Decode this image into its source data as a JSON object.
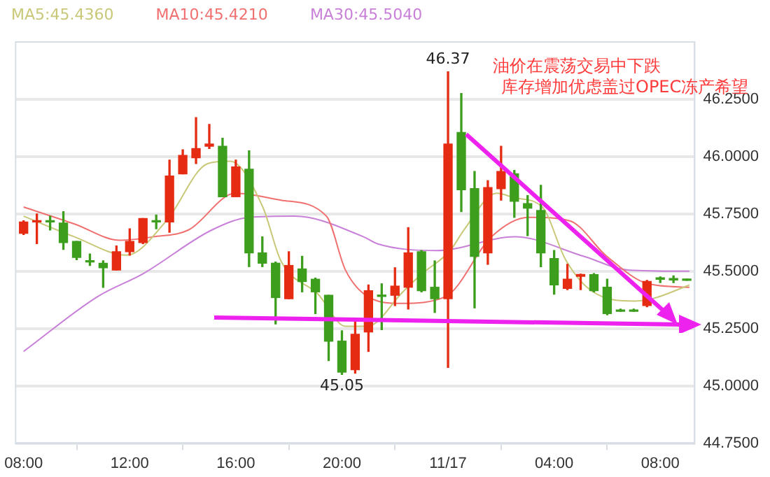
{
  "chart_data": {
    "type": "candlestick",
    "x": [
      "--11-16T08:00",
      "--11-16T08:30",
      "--11-16T09:00",
      "--11-16T09:30",
      "--11-16T10:00",
      "--11-16T10:30",
      "--11-16T11:00",
      "--11-16T11:30",
      "--11-16T12:00",
      "--11-16T12:30",
      "--11-16T13:00",
      "--11-16T13:30",
      "--11-16T14:00",
      "--11-16T14:30",
      "--11-16T15:00",
      "--11-16T15:30",
      "--11-16T16:00",
      "--11-16T16:30",
      "--11-16T17:00",
      "--11-16T17:30",
      "--11-16T18:00",
      "--11-16T18:30",
      "--11-16T19:00",
      "--11-16T19:30",
      "--11-16T20:00",
      "--11-16T20:30",
      "--11-16T21:00",
      "--11-16T21:30",
      "--11-16T22:00",
      "--11-16T22:30",
      "--11-16T23:00",
      "--11-16T23:30",
      "--11-17T00:00",
      "--11-17T00:30",
      "--11-17T01:00",
      "--11-17T01:30",
      "--11-17T02:00",
      "--11-17T02:30",
      "--11-17T03:00",
      "--11-17T03:30",
      "--11-17T04:00",
      "--11-17T04:30",
      "--11-17T05:00",
      "--11-17T05:30",
      "--11-17T06:00",
      "--11-17T06:30",
      "--11-17T07:00",
      "--11-17T07:30",
      "--11-17T08:00",
      "--11-17T08:30",
      "--11-17T09:00"
    ],
    "ohlc": [
      [
        45.665,
        45.72,
        45.66,
        45.715
      ],
      [
        45.715,
        45.75,
        45.62,
        45.72
      ],
      [
        45.72,
        45.74,
        45.68,
        45.715
      ],
      [
        45.71,
        45.76,
        45.595,
        45.625
      ],
      [
        45.63,
        45.63,
        45.55,
        45.56
      ],
      [
        45.545,
        45.575,
        45.525,
        45.54
      ],
      [
        45.535,
        45.545,
        45.43,
        45.515
      ],
      [
        45.505,
        45.61,
        45.505,
        45.585
      ],
      [
        45.585,
        45.685,
        45.57,
        45.63
      ],
      [
        45.625,
        45.73,
        45.62,
        45.73
      ],
      [
        45.72,
        45.745,
        45.685,
        45.715
      ],
      [
        45.715,
        45.985,
        45.67,
        45.915
      ],
      [
        45.925,
        46.03,
        45.925,
        46.005
      ],
      [
        45.995,
        46.17,
        45.97,
        46.035
      ],
      [
        46.045,
        46.14,
        46.035,
        46.055
      ],
      [
        46.045,
        46.08,
        45.825,
        45.825
      ],
      [
        45.825,
        45.985,
        45.825,
        45.955
      ],
      [
        45.945,
        46.025,
        45.52,
        45.58
      ],
      [
        45.58,
        45.65,
        45.52,
        45.535
      ],
      [
        45.535,
        45.54,
        45.27,
        45.385
      ],
      [
        45.38,
        45.585,
        45.38,
        45.525
      ],
      [
        45.51,
        45.565,
        45.41,
        45.455
      ],
      [
        45.465,
        45.47,
        45.315,
        45.41
      ],
      [
        45.395,
        45.395,
        45.11,
        45.195
      ],
      [
        45.195,
        45.24,
        45.05,
        45.06
      ],
      [
        45.07,
        45.28,
        45.055,
        45.225
      ],
      [
        45.235,
        45.44,
        45.15,
        45.415
      ],
      [
        45.395,
        45.445,
        45.245,
        45.39
      ],
      [
        45.395,
        45.515,
        45.35,
        45.435
      ],
      [
        45.43,
        45.69,
        45.335,
        45.58
      ],
      [
        45.585,
        45.59,
        45.41,
        45.415
      ],
      [
        45.43,
        45.545,
        45.32,
        45.38
      ],
      [
        45.38,
        46.37,
        45.08,
        46.055
      ],
      [
        46.105,
        46.275,
        45.76,
        45.855
      ],
      [
        45.86,
        45.935,
        45.34,
        45.565
      ],
      [
        45.58,
        45.895,
        45.53,
        45.865
      ],
      [
        45.86,
        46.045,
        45.81,
        45.935
      ],
      [
        45.925,
        45.94,
        45.735,
        45.805
      ],
      [
        45.795,
        45.83,
        45.655,
        45.775
      ],
      [
        45.765,
        45.875,
        45.52,
        45.58
      ],
      [
        45.555,
        45.59,
        45.4,
        45.44
      ],
      [
        45.425,
        45.53,
        45.42,
        45.465
      ],
      [
        45.478,
        45.487,
        45.42,
        45.486
      ],
      [
        45.485,
        45.49,
        45.41,
        45.415
      ],
      [
        45.43,
        45.465,
        45.31,
        45.315
      ],
      [
        45.33,
        45.335,
        45.325,
        45.325
      ],
      [
        45.33,
        45.335,
        45.325,
        45.325
      ],
      [
        45.35,
        45.46,
        45.345,
        45.455
      ],
      [
        45.468,
        45.475,
        45.45,
        45.465
      ],
      [
        45.467,
        45.48,
        45.45,
        45.462
      ],
      [
        45.462,
        45.462,
        45.46,
        45.46
      ]
    ],
    "colors": [
      "#e52b12",
      "#e52b12",
      "#3c9e1c",
      "#3c9e1c",
      "#3c9e1c",
      "#3c9e1c",
      "#3c9e1c",
      "#e52b12",
      "#e52b12",
      "#e52b12",
      "#3c9e1c",
      "#e52b12",
      "#e52b12",
      "#e52b12",
      "#e52b12",
      "#3c9e1c",
      "#e52b12",
      "#3c9e1c",
      "#3c9e1c",
      "#3c9e1c",
      "#e52b12",
      "#3c9e1c",
      "#3c9e1c",
      "#3c9e1c",
      "#3c9e1c",
      "#e52b12",
      "#e52b12",
      "#3c9e1c",
      "#e52b12",
      "#e52b12",
      "#3c9e1c",
      "#3c9e1c",
      "#e52b12",
      "#3c9e1c",
      "#3c9e1c",
      "#e52b12",
      "#e52b12",
      "#3c9e1c",
      "#3c9e1c",
      "#3c9e1c",
      "#3c9e1c",
      "#e52b12",
      "#e52b12",
      "#3c9e1c",
      "#3c9e1c",
      "#3c9e1c",
      "#3c9e1c",
      "#e52b12",
      "#3c9e1c",
      "#3c9e1c",
      "#3c9e1c"
    ],
    "series": [
      {
        "name": "MA5:45.4360",
        "type": "line",
        "color": "#c8c878",
        "x": [
          "--11-16T08:00",
          "--11-16T09:55",
          "--11-16T11:53",
          "--11-16T13:23",
          "--11-16T14:57",
          "--11-16T15:47",
          "--11-16T17:01",
          "--11-16T17:42",
          "--11-16T19:06",
          "--11-16T20:08",
          "--11-16T20:58",
          "--11-16T21:20",
          "--11-16T22:13",
          "--11-16T23:02",
          "--11-17T00:05",
          "--11-17T00:36",
          "--11-17T01:50",
          "--11-17T02:31",
          "--11-17T03:33",
          "--11-17T04:26",
          "--11-17T05:28",
          "--11-17T07:02",
          "--11-17T07:42",
          "--11-17T09:06"
        ],
        "values": [
          45.74,
          45.65,
          45.57,
          45.72,
          45.97,
          45.98,
          45.78,
          45.545,
          45.4,
          45.26,
          45.26,
          45.28,
          45.4,
          45.49,
          45.59,
          45.68,
          45.84,
          45.82,
          45.78,
          45.55,
          45.41,
          45.37,
          45.38,
          45.44
        ]
      },
      {
        "name": "MA10:45.4210",
        "type": "line",
        "color": "#f07070",
        "x": [
          "--11-16T08:00",
          "--11-16T09:55",
          "--11-16T11:38",
          "--11-16T12:53",
          "--11-16T14:13",
          "--11-16T15:59",
          "--11-16T17:42",
          "--11-16T19:25",
          "--11-16T20:08",
          "--11-16T20:58",
          "--11-16T22:13",
          "--11-16T23:55",
          "--11-17T01:38",
          "--11-17T03:02",
          "--11-17T04:35",
          "--11-17T05:59",
          "--11-17T07:33",
          "--11-17T09:06"
        ],
        "values": [
          45.78,
          45.706,
          45.635,
          45.65,
          45.68,
          45.84,
          45.81,
          45.74,
          45.505,
          45.39,
          45.36,
          45.39,
          45.65,
          45.735,
          45.72,
          45.565,
          45.445,
          45.43
        ]
      },
      {
        "name": "MA30:45.5040",
        "type": "line",
        "color": "#c880d8",
        "x": [
          "--11-16T08:00",
          "--11-16T10:48",
          "--11-16T12:31",
          "--11-16T15:06",
          "--11-16T16:31",
          "--11-16T18:13",
          "--11-16T20:49",
          "--11-16T21:20",
          "--11-16T23:34",
          "--11-17T02:31",
          "--11-17T05:07",
          "--11-17T06:49",
          "--11-17T09:06"
        ],
        "values": [
          45.15,
          45.39,
          45.49,
          45.68,
          45.735,
          45.74,
          45.65,
          45.62,
          45.59,
          45.65,
          45.565,
          45.505,
          45.5
        ]
      }
    ],
    "xlim": [
      "--11-16T07:42",
      "--11-17T09:18"
    ],
    "xticks": [
      {
        "value": "--11-16T08:00",
        "label": "08:00"
      },
      {
        "value": "--11-16T12:00",
        "label": "12:00"
      },
      {
        "value": "--11-16T16:00",
        "label": "16:00"
      },
      {
        "value": "--11-16T20:00",
        "label": "20:00"
      },
      {
        "value": "--11-17T00:00",
        "label": "11/17"
      },
      {
        "value": "--11-17T04:00",
        "label": "04:00"
      },
      {
        "value": "--11-17T08:00",
        "label": "08:00"
      }
    ],
    "ylim": [
      44.75,
      46.5
    ],
    "yticks": [
      {
        "value": 44.75,
        "label": "44.7500"
      },
      {
        "value": 45,
        "label": "45.0000"
      },
      {
        "value": 45.25,
        "label": "45.2500"
      },
      {
        "value": 45.5,
        "label": "45.5000"
      },
      {
        "value": 45.75,
        "label": "45.7500"
      },
      {
        "value": 46,
        "label": "46.0000"
      },
      {
        "value": 46.25,
        "label": "46.2500"
      }
    ],
    "grid": "y",
    "legend": "top left",
    "marker": "none",
    "annotations": [
      {
        "text": "46.37",
        "x": "--11-17T00:00",
        "y": 46.37
      },
      {
        "text": "45.05",
        "x": "--11-16T20:00",
        "y": 45.05
      },
      "油价在震荡交易中下跌",
      "库存增加优虑盖过OPEC冻产希望"
    ]
  }
}
